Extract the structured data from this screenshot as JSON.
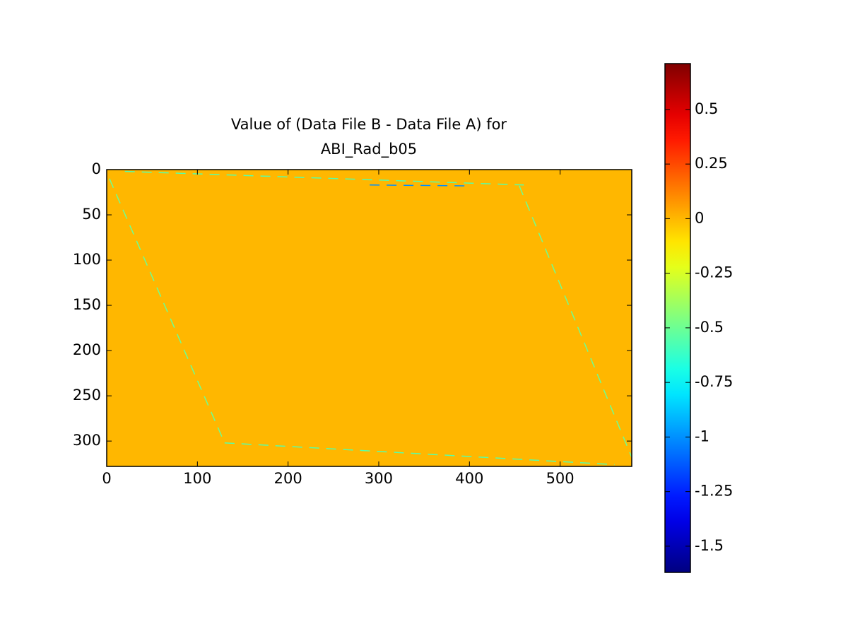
{
  "chart_data": {
    "type": "image",
    "title": [
      "Value of (Data File B - Data File A) for",
      "ABI_Rad_b05"
    ],
    "xlim": [
      0,
      579
    ],
    "ylim": [
      328,
      0
    ],
    "xticks": [
      0,
      100,
      200,
      300,
      400,
      500
    ],
    "yticks": [
      0,
      50,
      100,
      150,
      200,
      250,
      300
    ],
    "colormap": "jet",
    "clim": [
      -1.62,
      0.71
    ],
    "cticks": [
      0.5,
      0.25,
      0,
      -0.25,
      -0.5,
      -0.75,
      -1,
      -1.25,
      -1.5
    ],
    "background": 0,
    "features": [
      {
        "x": [
          20,
          460
        ],
        "y": [
          2,
          17
        ],
        "value": -0.55
      },
      {
        "x": [
          290,
          400
        ],
        "y": [
          17,
          18
        ],
        "value": -1
      },
      {
        "x": [
          3,
          130
        ],
        "y": [
          10,
          302
        ],
        "value": -0.5
      },
      {
        "x": [
          130,
          560
        ],
        "y": [
          302,
          326
        ],
        "value": -0.55
      },
      {
        "x": [
          455,
          579
        ],
        "y": [
          18,
          318
        ],
        "value": -0.5
      }
    ]
  }
}
